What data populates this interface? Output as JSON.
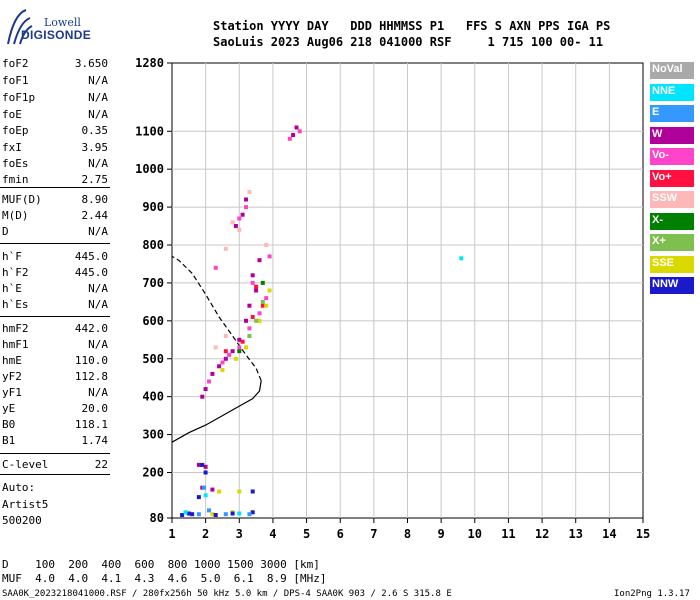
{
  "logo": {
    "line1": "Lowell",
    "line2": "DIGISONDE"
  },
  "header": {
    "row1": "Station YYYY DAY   DDD HHMMSS P1   FFS S AXN PPS IGA PS",
    "row2": "SaoLuis 2023 Aug06 218 041000 RSF     1 715 100 00- 11"
  },
  "params": [
    {
      "name": "foF2",
      "value": "3.650"
    },
    {
      "name": "foF1",
      "value": "N/A"
    },
    {
      "name": "foF1p",
      "value": "N/A"
    },
    {
      "name": "foE",
      "value": "N/A"
    },
    {
      "name": "foEp",
      "value": "0.35"
    },
    {
      "name": "fxI",
      "value": "3.95"
    },
    {
      "name": "foEs",
      "value": "N/A"
    },
    {
      "name": "fmin",
      "value": "2.75"
    },
    {
      "name": "MUF(D)",
      "value": "8.90"
    },
    {
      "name": "M(D)",
      "value": "2.44"
    },
    {
      "name": "D",
      "value": "N/A"
    },
    {
      "name": "h`F",
      "value": "445.0"
    },
    {
      "name": "h`F2",
      "value": "445.0"
    },
    {
      "name": "h`E",
      "value": "N/A"
    },
    {
      "name": "h`Es",
      "value": "N/A"
    },
    {
      "name": "hmF2",
      "value": "442.0"
    },
    {
      "name": "hmF1",
      "value": "N/A"
    },
    {
      "name": "hmE",
      "value": "110.0"
    },
    {
      "name": "yF2",
      "value": "112.8"
    },
    {
      "name": "yF1",
      "value": "N/A"
    },
    {
      "name": "yE",
      "value": "20.0"
    },
    {
      "name": "B0",
      "value": "118.1"
    },
    {
      "name": "B1",
      "value": "1.74"
    },
    {
      "name": "C-level",
      "value": "22"
    }
  ],
  "auto": {
    "line1": "Auto:",
    "line2": "Artist5",
    "line3": "500200"
  },
  "muf_table": {
    "row1": "D    100  200  400  600  800 1000 1500 3000 [km]",
    "row2": "MUF  4.0  4.0  4.1  4.3  4.6  5.0  6.1  8.9 [MHz]"
  },
  "footer": {
    "left": "SAA0K_2023218041000.RSF / 280fx256h 50 kHz 5.0 km / DPS-4 SAA0K 903 / 2.6 S 315.8 E",
    "right": "Ion2Png 1.3.17"
  },
  "legend": [
    {
      "label": "NoVal",
      "bg": "#a9a9a9",
      "fg": "#ffffff"
    },
    {
      "label": "NNE",
      "bg": "#00e5ff",
      "fg": "#ffffff"
    },
    {
      "label": "E",
      "bg": "#3399ff",
      "fg": "#ffffff"
    },
    {
      "label": "W",
      "bg": "#b0009a",
      "fg": "#ffffff"
    },
    {
      "label": "Vo-",
      "bg": "#ff44cc",
      "fg": "#ffffff"
    },
    {
      "label": "Vo+",
      "bg": "#ff1040",
      "fg": "#ffffff"
    },
    {
      "label": "SSW",
      "bg": "#ffb8b8",
      "fg": "#ffffff"
    },
    {
      "label": "X-",
      "bg": "#008000",
      "fg": "#ffffff"
    },
    {
      "label": "X+",
      "bg": "#7fbf4f",
      "fg": "#ffffff"
    },
    {
      "label": "SSE",
      "bg": "#d9d900",
      "fg": "#ffffff"
    },
    {
      "label": "NNW",
      "bg": "#1a1acc",
      "fg": "#ffffff"
    }
  ],
  "chart_data": {
    "type": "scatter",
    "xlabel": "",
    "ylabel": "",
    "xlim": [
      1,
      15
    ],
    "ylim": [
      80,
      1280
    ],
    "x_ticks": [
      1,
      2,
      3,
      4,
      5,
      6,
      7,
      8,
      9,
      10,
      11,
      12,
      13,
      14,
      15
    ],
    "y_ticks": [
      80,
      200,
      300,
      400,
      500,
      600,
      700,
      800,
      900,
      1000,
      1100,
      1280
    ],
    "grid": true,
    "legend_position": "right",
    "series": [
      {
        "name": "W",
        "color": "#b0009a",
        "points": [
          [
            1.9,
            400
          ],
          [
            2.0,
            420
          ],
          [
            2.2,
            460
          ],
          [
            2.4,
            480
          ],
          [
            2.6,
            500
          ],
          [
            2.8,
            520
          ],
          [
            3.0,
            550
          ],
          [
            3.2,
            600
          ],
          [
            3.3,
            640
          ],
          [
            3.5,
            680
          ],
          [
            3.4,
            720
          ],
          [
            3.6,
            760
          ],
          [
            2.9,
            850
          ],
          [
            3.1,
            880
          ],
          [
            3.2,
            920
          ],
          [
            4.6,
            1090
          ],
          [
            4.7,
            1110
          ],
          [
            1.8,
            220
          ],
          [
            2.0,
            215
          ],
          [
            1.9,
            160
          ],
          [
            2.2,
            155
          ]
        ]
      },
      {
        "name": "Vo-",
        "color": "#ff44cc",
        "points": [
          [
            2.1,
            440
          ],
          [
            2.5,
            490
          ],
          [
            2.7,
            510
          ],
          [
            3.0,
            530
          ],
          [
            3.3,
            580
          ],
          [
            3.6,
            620
          ],
          [
            3.8,
            660
          ],
          [
            3.4,
            700
          ],
          [
            3.0,
            870
          ],
          [
            3.2,
            900
          ],
          [
            4.8,
            1100
          ],
          [
            4.5,
            1080
          ],
          [
            2.3,
            740
          ],
          [
            3.9,
            770
          ]
        ]
      },
      {
        "name": "Vo+",
        "color": "#ff1040",
        "points": [
          [
            2.6,
            520
          ],
          [
            3.1,
            545
          ],
          [
            3.4,
            610
          ],
          [
            3.7,
            640
          ],
          [
            3.5,
            690
          ]
        ]
      },
      {
        "name": "SSW",
        "color": "#ffb8b8",
        "points": [
          [
            2.8,
            860
          ],
          [
            3.0,
            840
          ],
          [
            3.3,
            940
          ],
          [
            2.6,
            790
          ],
          [
            3.8,
            800
          ],
          [
            2.3,
            530
          ],
          [
            2.6,
            560
          ]
        ]
      },
      {
        "name": "SSE",
        "color": "#d9d900",
        "points": [
          [
            2.5,
            470
          ],
          [
            2.9,
            500
          ],
          [
            3.2,
            530
          ],
          [
            3.6,
            600
          ],
          [
            3.8,
            640
          ],
          [
            3.9,
            680
          ],
          [
            2.4,
            150
          ],
          [
            3.0,
            150
          ],
          [
            2.2,
            90
          ],
          [
            2.8,
            95
          ]
        ]
      },
      {
        "name": "X+",
        "color": "#7fbf4f",
        "points": [
          [
            3.3,
            560
          ],
          [
            3.5,
            600
          ],
          [
            3.7,
            650
          ]
        ]
      },
      {
        "name": "X-",
        "color": "#008000",
        "points": [
          [
            3.7,
            700
          ],
          [
            3.0,
            520
          ]
        ]
      },
      {
        "name": "NNW",
        "color": "#1a1acc",
        "points": [
          [
            1.3,
            88
          ],
          [
            1.6,
            90
          ],
          [
            1.9,
            220
          ],
          [
            2.0,
            200
          ],
          [
            1.8,
            135
          ],
          [
            2.3,
            88
          ],
          [
            2.8,
            92
          ],
          [
            3.4,
            95
          ],
          [
            1.5,
            92
          ],
          [
            3.4,
            150
          ]
        ]
      },
      {
        "name": "E",
        "color": "#3399ff",
        "points": [
          [
            1.8,
            90
          ],
          [
            2.1,
            100
          ],
          [
            2.6,
            90
          ],
          [
            3.3,
            90
          ],
          [
            1.95,
            160
          ]
        ]
      },
      {
        "name": "NNE",
        "color": "#00e5ff",
        "points": [
          [
            1.4,
            95
          ],
          [
            2.0,
            140
          ],
          [
            3.0,
            92
          ],
          [
            9.6,
            765
          ]
        ]
      }
    ],
    "profile_curve": {
      "name": "Electron density profile",
      "solid": [
        [
          1.0,
          280
        ],
        [
          1.5,
          305
        ],
        [
          2.0,
          325
        ],
        [
          2.5,
          350
        ],
        [
          3.0,
          375
        ],
        [
          3.4,
          395
        ],
        [
          3.6,
          415
        ],
        [
          3.65,
          442
        ]
      ],
      "dashed": [
        [
          3.65,
          442
        ],
        [
          3.5,
          475
        ],
        [
          3.2,
          510
        ],
        [
          2.8,
          560
        ],
        [
          2.4,
          610
        ],
        [
          2.0,
          670
        ],
        [
          1.6,
          725
        ],
        [
          1.2,
          760
        ],
        [
          1.0,
          770
        ]
      ]
    }
  }
}
